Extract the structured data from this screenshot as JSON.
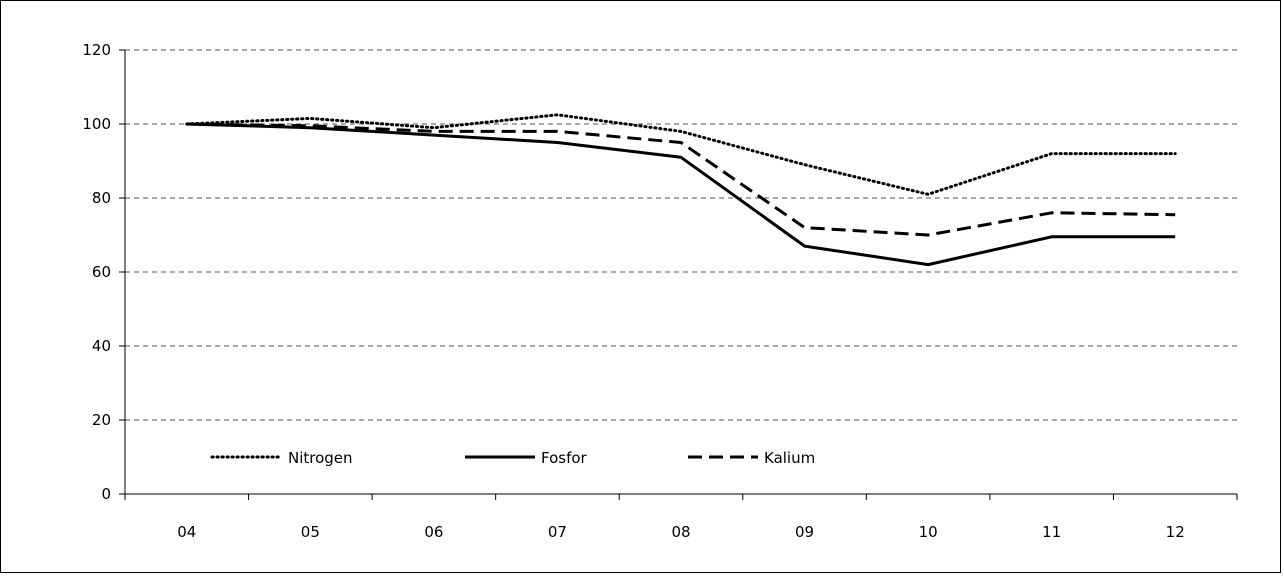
{
  "chart_data": {
    "type": "line",
    "categories": [
      "04",
      "05",
      "06",
      "07",
      "08",
      "09",
      "10",
      "11",
      "12"
    ],
    "ylim": [
      0,
      120
    ],
    "yticks": [
      0,
      20,
      40,
      60,
      80,
      100,
      120
    ],
    "grid": "horizontal dashed",
    "legend_position": "bottom-left",
    "series": [
      {
        "name": "Nitrogen",
        "style": "dotted",
        "values": [
          100,
          101.5,
          99,
          102.5,
          98,
          89,
          81,
          92,
          92
        ]
      },
      {
        "name": "Fosfor",
        "style": "solid",
        "values": [
          100,
          99,
          97,
          95,
          91,
          67,
          62,
          69.5,
          69.5
        ]
      },
      {
        "name": "Kalium",
        "style": "dashed",
        "values": [
          100,
          99.5,
          98,
          98,
          95,
          72,
          70,
          76,
          75.5
        ]
      }
    ],
    "colors": {
      "line": "#000000",
      "grid": "#555555",
      "background": "#ffffff"
    }
  }
}
